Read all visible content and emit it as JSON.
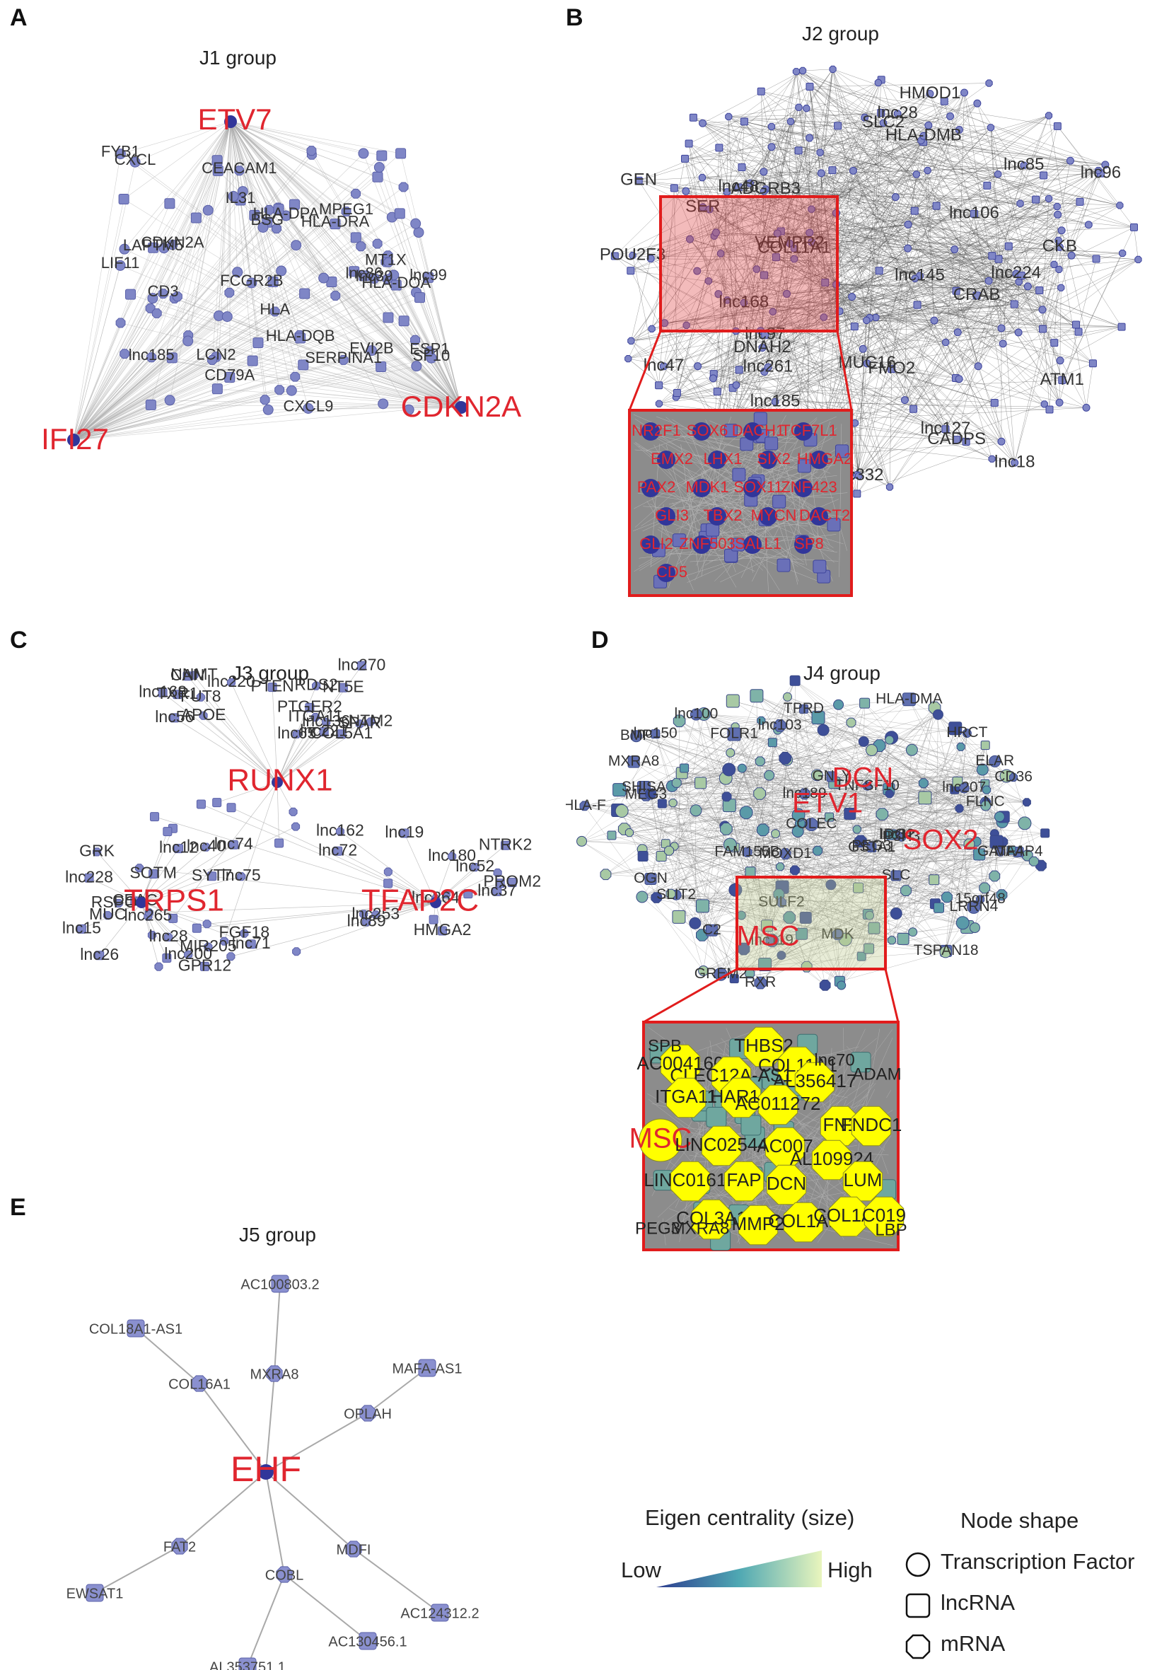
{
  "panels": {
    "A": {
      "letter": "A",
      "title": "J1 group",
      "hubs": [
        "ETV7",
        "CDKN2A",
        "IFI27"
      ],
      "labels": [
        "LIF11",
        "BSG",
        "CEACAM1",
        "LCN2",
        "HLA-DOA",
        "SERPINA1",
        "SF10",
        "CD79A",
        "MT1X",
        "CXCL",
        "LAPTM5",
        "ESP1",
        "HLA-DPA",
        "HLA-DRA",
        "lnc185",
        "FYB1",
        "lnc99",
        "HLA",
        "lnc39",
        "IL31",
        "MPEG1",
        "FCGR2B",
        "lnc86",
        "CDKN2A",
        "CXCL9",
        "HLA-DQB",
        "CD3",
        "EVI2B"
      ]
    },
    "B": {
      "letter": "B",
      "title": "J2 group",
      "labels": [
        "lnc145",
        "FMO2",
        "VEMPR2",
        "ADGRB3",
        "CADPS",
        "POU2F3",
        "CKB",
        "lnc127",
        "SLC2",
        "SER",
        "GEN",
        "lnc185",
        "HLA-DMB",
        "lnc48",
        "lnc85",
        "MUC16",
        "lnc97",
        "lnc332",
        "HMOD1",
        "lnc96",
        "lnc168",
        "lnc261",
        "ATM1",
        "lnc224",
        "lnc47",
        "lnc106",
        "COL11A1",
        "DNAH2",
        "CRAB",
        "lnc28",
        "lnc18"
      ],
      "zoom_labels": [
        "NR2F1",
        "SOX6",
        "DACH1",
        "TCF7L1",
        "EMX2",
        "LHX1",
        "SIX2",
        "HMGA2",
        "PAX2",
        "MDK1",
        "SOX11",
        "ZNF423",
        "GLI3",
        "TBX2",
        "MYCN",
        "DACT2",
        "GLI2",
        "ZNF503",
        "SALL1",
        "SP8",
        "CD5"
      ]
    },
    "C": {
      "letter": "C",
      "title": "J3 group",
      "hubs": [
        "RUNX1",
        "TRPS1",
        "TFAP2C"
      ],
      "labels": [
        "lnc168",
        "NTM2",
        "COL5A1",
        "SPAR",
        "NT5E",
        "RDS2",
        "TXR1",
        "APOE",
        "PTEN",
        "ITGA11",
        "CAN",
        "NNMT",
        "PTGER2",
        "lnc136",
        "lnc56",
        "lnc220",
        "lnc221",
        "FUT8",
        "lnc270",
        "lnc65",
        "lnc228",
        "lnc200",
        "GPR12",
        "lnc75",
        "lnc26",
        "lnc265",
        "SYT7",
        "MIR205",
        "lnc71",
        "RSPO3",
        "lnc15",
        "GRK",
        "SOTM",
        "FGF18",
        "lnc74",
        "lnc28",
        "CEAC",
        "lnc40",
        "lnc12",
        "MUC",
        "NTRK2",
        "lnc180",
        "HMGA2",
        "lnc89",
        "PROM2",
        "lnc264",
        "lnc19",
        "lnc253",
        "lnc37",
        "lnc162",
        "lnc72",
        "lnc52"
      ]
    },
    "D": {
      "letter": "D",
      "title": "J4 group",
      "hubs": [
        "MSC",
        "ETV1",
        "SOX2",
        "DCN"
      ],
      "labels": [
        "IDO1",
        "HLA-F",
        "TSPAN18",
        "LRRN4",
        "GATA4",
        "MFAP4",
        "lnc100",
        "MEG3",
        "TPRD",
        "FLNC",
        "MOXD1",
        "SHISA",
        "P3H3",
        "SULF2",
        "OGN",
        "COLEC",
        "15orf48",
        "SLC",
        "ELAR",
        "RXR",
        "GSTA1",
        "SLIT2",
        "MDK",
        "FOLR1",
        "HRCT",
        "PEG3",
        "MXRA8",
        "GREM2",
        "CD36",
        "GNLY",
        "BMP",
        "lnc103",
        "lnc150",
        "lnc207",
        "lnc189",
        "HLA-DMA",
        "TNFSF10",
        "FAM155B",
        "C2",
        "lnc119",
        "lnc32"
      ],
      "zoom_labels": [
        "THBS2",
        "AC004160",
        "COL11A1",
        "CLEC12A-AS1",
        "AL356417",
        "ITGA11",
        "HAR1A",
        "AC011272",
        "FN1",
        "FNDC1",
        "MSC",
        "LINC02544",
        "AC007",
        "AL109924",
        "LINC01614",
        "FAP",
        "DCN",
        "LUM",
        "COL3A1",
        "MMP2",
        "COL1A1",
        "COL1A2",
        "C019",
        "lnc70",
        "ADAM",
        "PEG3",
        "MXRA8",
        "SPB",
        "LBP"
      ]
    },
    "E": {
      "letter": "E",
      "title": "J5 group",
      "hub": "EHF",
      "nodes": [
        {
          "id": "ac100803",
          "label": "AC100803.2",
          "shape": "lnc"
        },
        {
          "id": "col18a1",
          "label": "COL18A1-AS1",
          "shape": "lnc"
        },
        {
          "id": "mxra8",
          "label": "MXRA8",
          "shape": "mrna"
        },
        {
          "id": "col16a1",
          "label": "COL16A1",
          "shape": "mrna"
        },
        {
          "id": "mafa",
          "label": "MAFA-AS1",
          "shape": "lnc"
        },
        {
          "id": "oplah",
          "label": "OPLAH",
          "shape": "mrna"
        },
        {
          "id": "fat2",
          "label": "FAT2",
          "shape": "mrna"
        },
        {
          "id": "mdfi",
          "label": "MDFI",
          "shape": "mrna"
        },
        {
          "id": "ewsat1",
          "label": "EWSAT1",
          "shape": "lnc"
        },
        {
          "id": "cobl",
          "label": "COBL",
          "shape": "mrna"
        },
        {
          "id": "ac124312",
          "label": "AC124312.2",
          "shape": "lnc"
        },
        {
          "id": "ac130456",
          "label": "AC130456.1",
          "shape": "lnc"
        },
        {
          "id": "al353751",
          "label": "AL353751.1",
          "shape": "lnc"
        }
      ],
      "edges": [
        [
          "ehf",
          "col16a1"
        ],
        [
          "col16a1",
          "col18a1"
        ],
        [
          "ehf",
          "mxra8"
        ],
        [
          "mxra8",
          "ac100803"
        ],
        [
          "ehf",
          "oplah"
        ],
        [
          "oplah",
          "mafa"
        ],
        [
          "ehf",
          "fat2"
        ],
        [
          "fat2",
          "ewsat1"
        ],
        [
          "ehf",
          "mdfi"
        ],
        [
          "mdfi",
          "ac124312"
        ],
        [
          "ehf",
          "cobl"
        ],
        [
          "cobl",
          "ac130456"
        ],
        [
          "cobl",
          "al353751"
        ]
      ]
    }
  },
  "legend": {
    "eigen_title": "Eigen centrality (size)",
    "low_label": "Low",
    "high_label": "High",
    "shape_title": "Node shape",
    "shapes": [
      {
        "label": "Transcription Factor",
        "icon": "circle-icon"
      },
      {
        "label": "lncRNA",
        "icon": "square-icon"
      },
      {
        "label": "mRNA",
        "icon": "octagon-icon"
      }
    ]
  },
  "colors": {
    "hub_text": "#e0262f",
    "node": "#7f86c6",
    "node_dark": "#31369a",
    "edge": "#a9a9a9",
    "highlight": "#e11c1c",
    "zoom_bg": "#8c8c8c",
    "yellow": "#ffff00",
    "gradient_low": "#2c3c8f",
    "gradient_mid": "#4fa8b3",
    "gradient_high": "#e9f5bd"
  }
}
